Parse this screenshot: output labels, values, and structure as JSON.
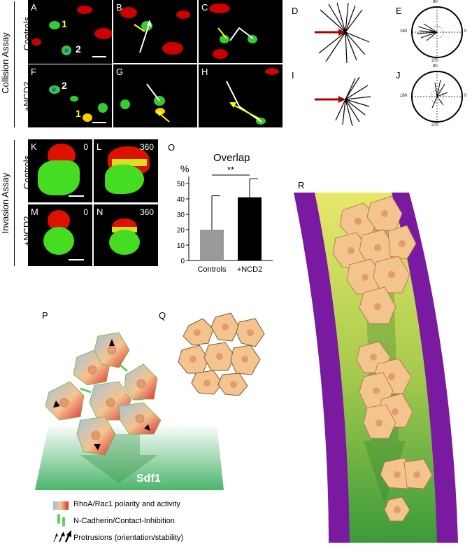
{
  "assays": {
    "collision": "Collision Assay",
    "invasion": "Invasion Assay",
    "controls": "Controls",
    "ncd2": "+NCD2"
  },
  "panels": {
    "A": "A",
    "B": "B",
    "C": "C",
    "D": "D",
    "E": "E",
    "F": "F",
    "G": "G",
    "H": "H",
    "I": "I",
    "J": "J",
    "K": "K",
    "L": "L",
    "M": "M",
    "N": "N",
    "O": "O",
    "P": "P",
    "Q": "Q",
    "R": "R"
  },
  "cell_ids": {
    "one": "1",
    "two": "2"
  },
  "timepoints": {
    "start": "0",
    "end": "360"
  },
  "polar": {
    "top": "90",
    "left": "180",
    "right": "0",
    "bottom": "270"
  },
  "chart_data": {
    "type": "bar",
    "title": "Overlap",
    "ylabel": "%",
    "categories": [
      "Controls",
      "+NCD2"
    ],
    "values": [
      20,
      41
    ],
    "errors": [
      22,
      12
    ],
    "ylim": [
      0,
      50
    ],
    "yticks": [
      "0",
      "10",
      "20",
      "30",
      "40",
      "50"
    ],
    "significance": "**",
    "colors": [
      "#999999",
      "#000000"
    ]
  },
  "legend": {
    "sdf1": "Sdf1",
    "polarity": "RhoA/Rac1 polarity and activity",
    "cadherin": "N-Cadherin/Contact-Inhibition",
    "protrusion": "Protrusions (orientation/stability)"
  }
}
